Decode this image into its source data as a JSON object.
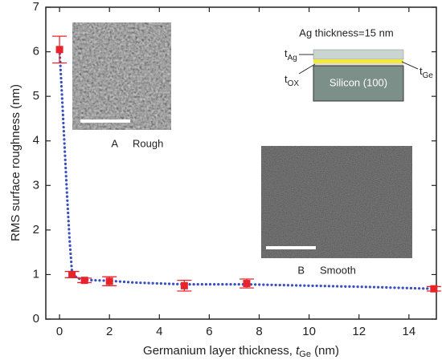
{
  "chart_data": {
    "type": "scatter-fit",
    "y_label": "RMS surface roughness (nm)",
    "x_label": {
      "text": "Germanium layer thickness, ",
      "var": "t",
      "sub": "Ge",
      "unit": "(nm)"
    },
    "xlim": [
      -0.55,
      15.1
    ],
    "xticks": [
      0,
      2,
      4,
      6,
      8,
      10,
      12,
      14
    ],
    "ylim": [
      0,
      7
    ],
    "yticks": [
      0,
      1,
      2,
      3,
      4,
      5,
      6,
      7
    ],
    "series": [
      {
        "color": "#3a4fc0",
        "style": "dotted",
        "x": [
          0,
          0.1,
          0.2,
          0.3,
          0.4,
          0.5,
          0.7,
          1,
          2,
          3,
          5,
          7.5,
          10,
          12.5,
          15
        ],
        "values": [
          6.05,
          5.0,
          3.9,
          2.8,
          1.8,
          1.05,
          0.92,
          0.88,
          0.86,
          0.82,
          0.78,
          0.78,
          0.75,
          0.72,
          0.68
        ]
      },
      {
        "color": "#e8242b",
        "style": "markers",
        "x": [
          0,
          0.5,
          1,
          2,
          5,
          7.5,
          15
        ],
        "values": [
          6.05,
          1.0,
          0.87,
          0.85,
          0.75,
          0.8,
          0.68
        ],
        "errors": [
          0.3,
          0.07,
          0.05,
          0.1,
          0.12,
          0.1,
          0.05
        ]
      }
    ],
    "insets": {
      "a": {
        "letter": "A",
        "label": "Rough"
      },
      "b": {
        "letter": "B",
        "label": "Smooth"
      },
      "schematic": {
        "title": "Ag thickness=15 nm",
        "substrate": "Silicon (100)",
        "t_ag": {
          "var": "t",
          "sub": "Ag"
        },
        "t_ge": {
          "var": "t",
          "sub": "Ge"
        },
        "t_ox": {
          "var": "t",
          "sub": "OX"
        }
      }
    }
  }
}
